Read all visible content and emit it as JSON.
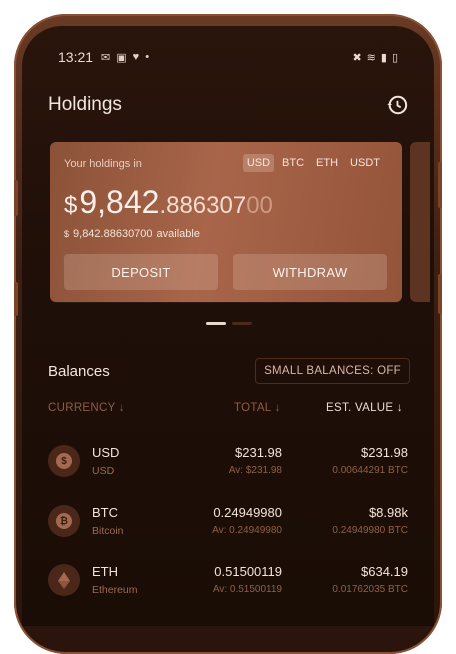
{
  "status": {
    "time": "13:21",
    "left_icons": [
      "mail-icon",
      "image-icon",
      "heart-icon",
      "dot-icon"
    ],
    "right_icons": [
      "mute-icon",
      "wifi-icon",
      "signal-icon",
      "battery-icon"
    ]
  },
  "appbar": {
    "title": "Holdings",
    "history_icon": "history-icon"
  },
  "card": {
    "label": "Your holdings in",
    "currencies": [
      "USD",
      "BTC",
      "ETH",
      "USDT"
    ],
    "active_currency": "USD",
    "amount_symbol": "$",
    "amount_main": "9,842",
    "amount_fraction": ".886307",
    "amount_fraction_faint": "00",
    "available_symbol": "$",
    "available_amount": "9,842.88630700",
    "available_label": "available",
    "deposit_label": "DEPOSIT",
    "withdraw_label": "WITHDRAW"
  },
  "pager": {
    "count": 2,
    "active": 0
  },
  "balances": {
    "title": "Balances",
    "toggle_label": "SMALL BALANCES: OFF",
    "columns": {
      "currency": "CURRENCY ↓",
      "total": "TOTAL ↓",
      "est_value": "EST. VALUE ↓"
    },
    "rows": [
      {
        "symbol": "USD",
        "name": "USD",
        "total": "$231.98",
        "available": "Av: $231.98",
        "est_value": "$231.98",
        "est_btc": "0.00644291 BTC",
        "icon": "dollar-icon"
      },
      {
        "symbol": "BTC",
        "name": "Bitcoin",
        "total": "0.24949980",
        "available": "Av: 0.24949980",
        "est_value": "$8.98k",
        "est_btc": "0.24949980 BTC",
        "icon": "bitcoin-icon"
      },
      {
        "symbol": "ETH",
        "name": "Ethereum",
        "total": "0.51500119",
        "available": "Av: 0.51500119",
        "est_value": "$634.19",
        "est_btc": "0.01762035 BTC",
        "icon": "ethereum-icon"
      }
    ]
  },
  "colors": {
    "accent_card": "#a8654a",
    "background": "#1f0f08",
    "text": "#f3e4da",
    "muted": "#8e5d45"
  }
}
